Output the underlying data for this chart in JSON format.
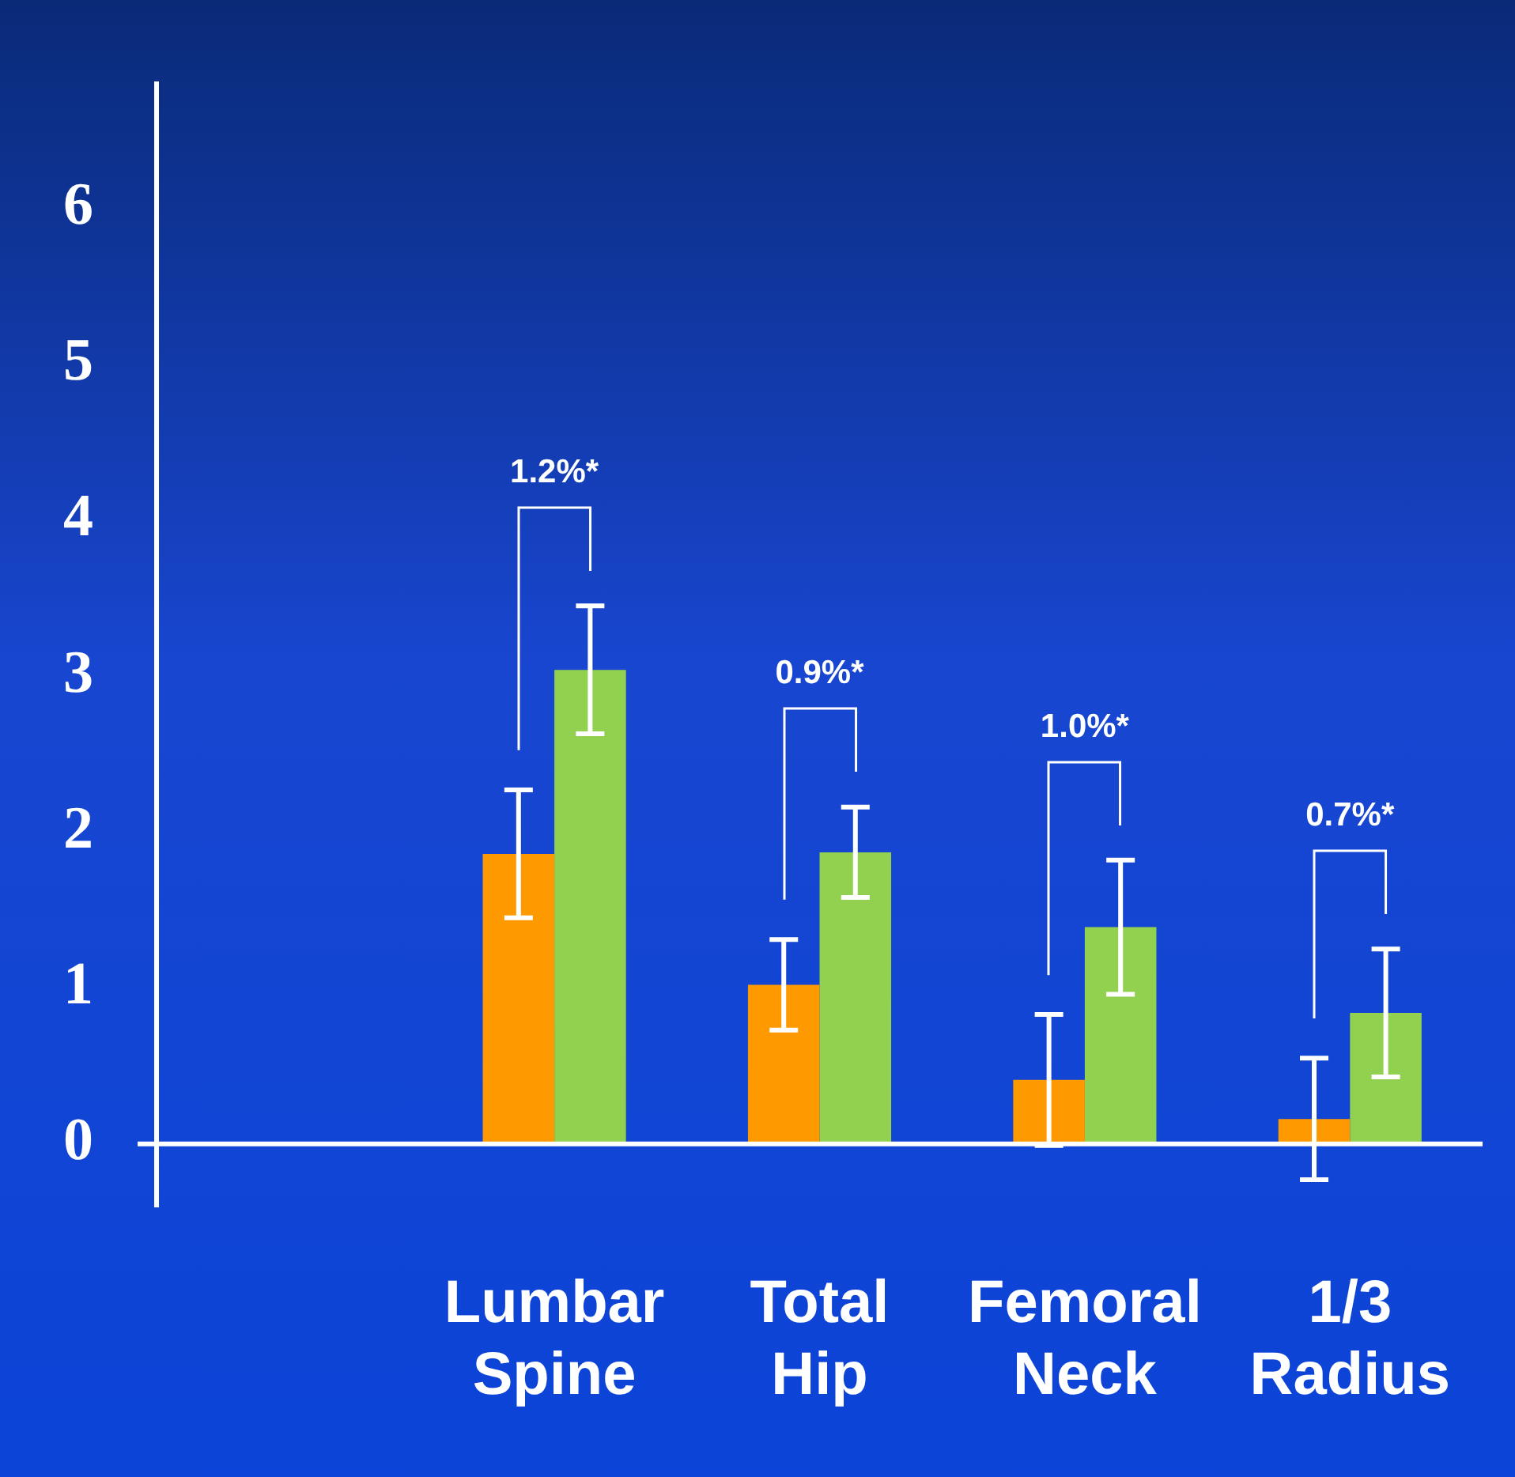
{
  "chart_data": {
    "type": "bar",
    "categories": [
      null,
      "Lumbar Spine",
      "Total Hip",
      "Femoral Neck",
      "1/3 Radius"
    ],
    "series": [
      {
        "color": "#ff9900",
        "values": [
          null,
          1.86,
          1.02,
          0.41,
          0.16
        ],
        "errors": [
          null,
          0.41,
          0.29,
          0.42,
          0.39
        ]
      },
      {
        "color": "#92d050",
        "values": [
          null,
          3.04,
          1.87,
          1.39,
          0.84
        ],
        "errors": [
          null,
          0.41,
          0.29,
          0.43,
          0.41
        ]
      }
    ],
    "ylim": [
      -0.4,
      6.8
    ],
    "yticks": [
      0,
      1,
      2,
      3,
      4,
      5,
      6
    ],
    "grid": false,
    "legend": false,
    "annotations": [
      "1.2%*",
      "0.9%*",
      "1.0%*",
      "0.7%*"
    ]
  }
}
